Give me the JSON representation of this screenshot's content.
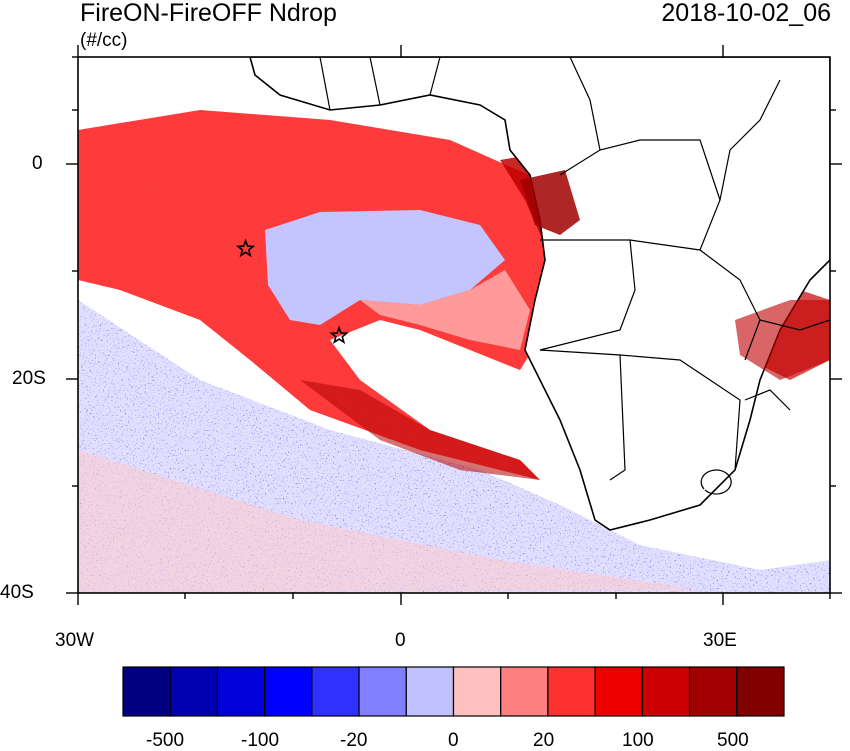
{
  "title_left": "FireON-FireOFF Ndrop",
  "title_right": "2018-10-02_06",
  "units": "(#/cc)",
  "map": {
    "lat_range": [
      -40,
      10
    ],
    "lon_range": [
      -30,
      40
    ],
    "y_tick_labels": [
      {
        "lat": 0,
        "label": "0"
      },
      {
        "lat": -20,
        "label": "20S"
      },
      {
        "lat": -40,
        "label": "40S"
      }
    ],
    "x_tick_labels": [
      {
        "lon": -30,
        "label": "30W"
      },
      {
        "lon": 0,
        "label": "0"
      },
      {
        "lon": 30,
        "label": "30E"
      }
    ],
    "markers": [
      {
        "name": "star-marker-ascension-region",
        "lon": -14.4,
        "lat": -7.9
      },
      {
        "name": "star-marker-st-helena-region",
        "lon": -5.7,
        "lat": -16.0
      }
    ]
  },
  "colorbar": {
    "colors": [
      "#000080",
      "#0000b0",
      "#0000d8",
      "#0000ff",
      "#3030ff",
      "#8080ff",
      "#c0c0ff",
      "#ffc0c0",
      "#ff8080",
      "#ff3030",
      "#ee0000",
      "#cc0000",
      "#a00000",
      "#800000"
    ],
    "labels": [
      "-500",
      "-100",
      "-20",
      "0",
      "20",
      "100",
      "500"
    ]
  }
}
